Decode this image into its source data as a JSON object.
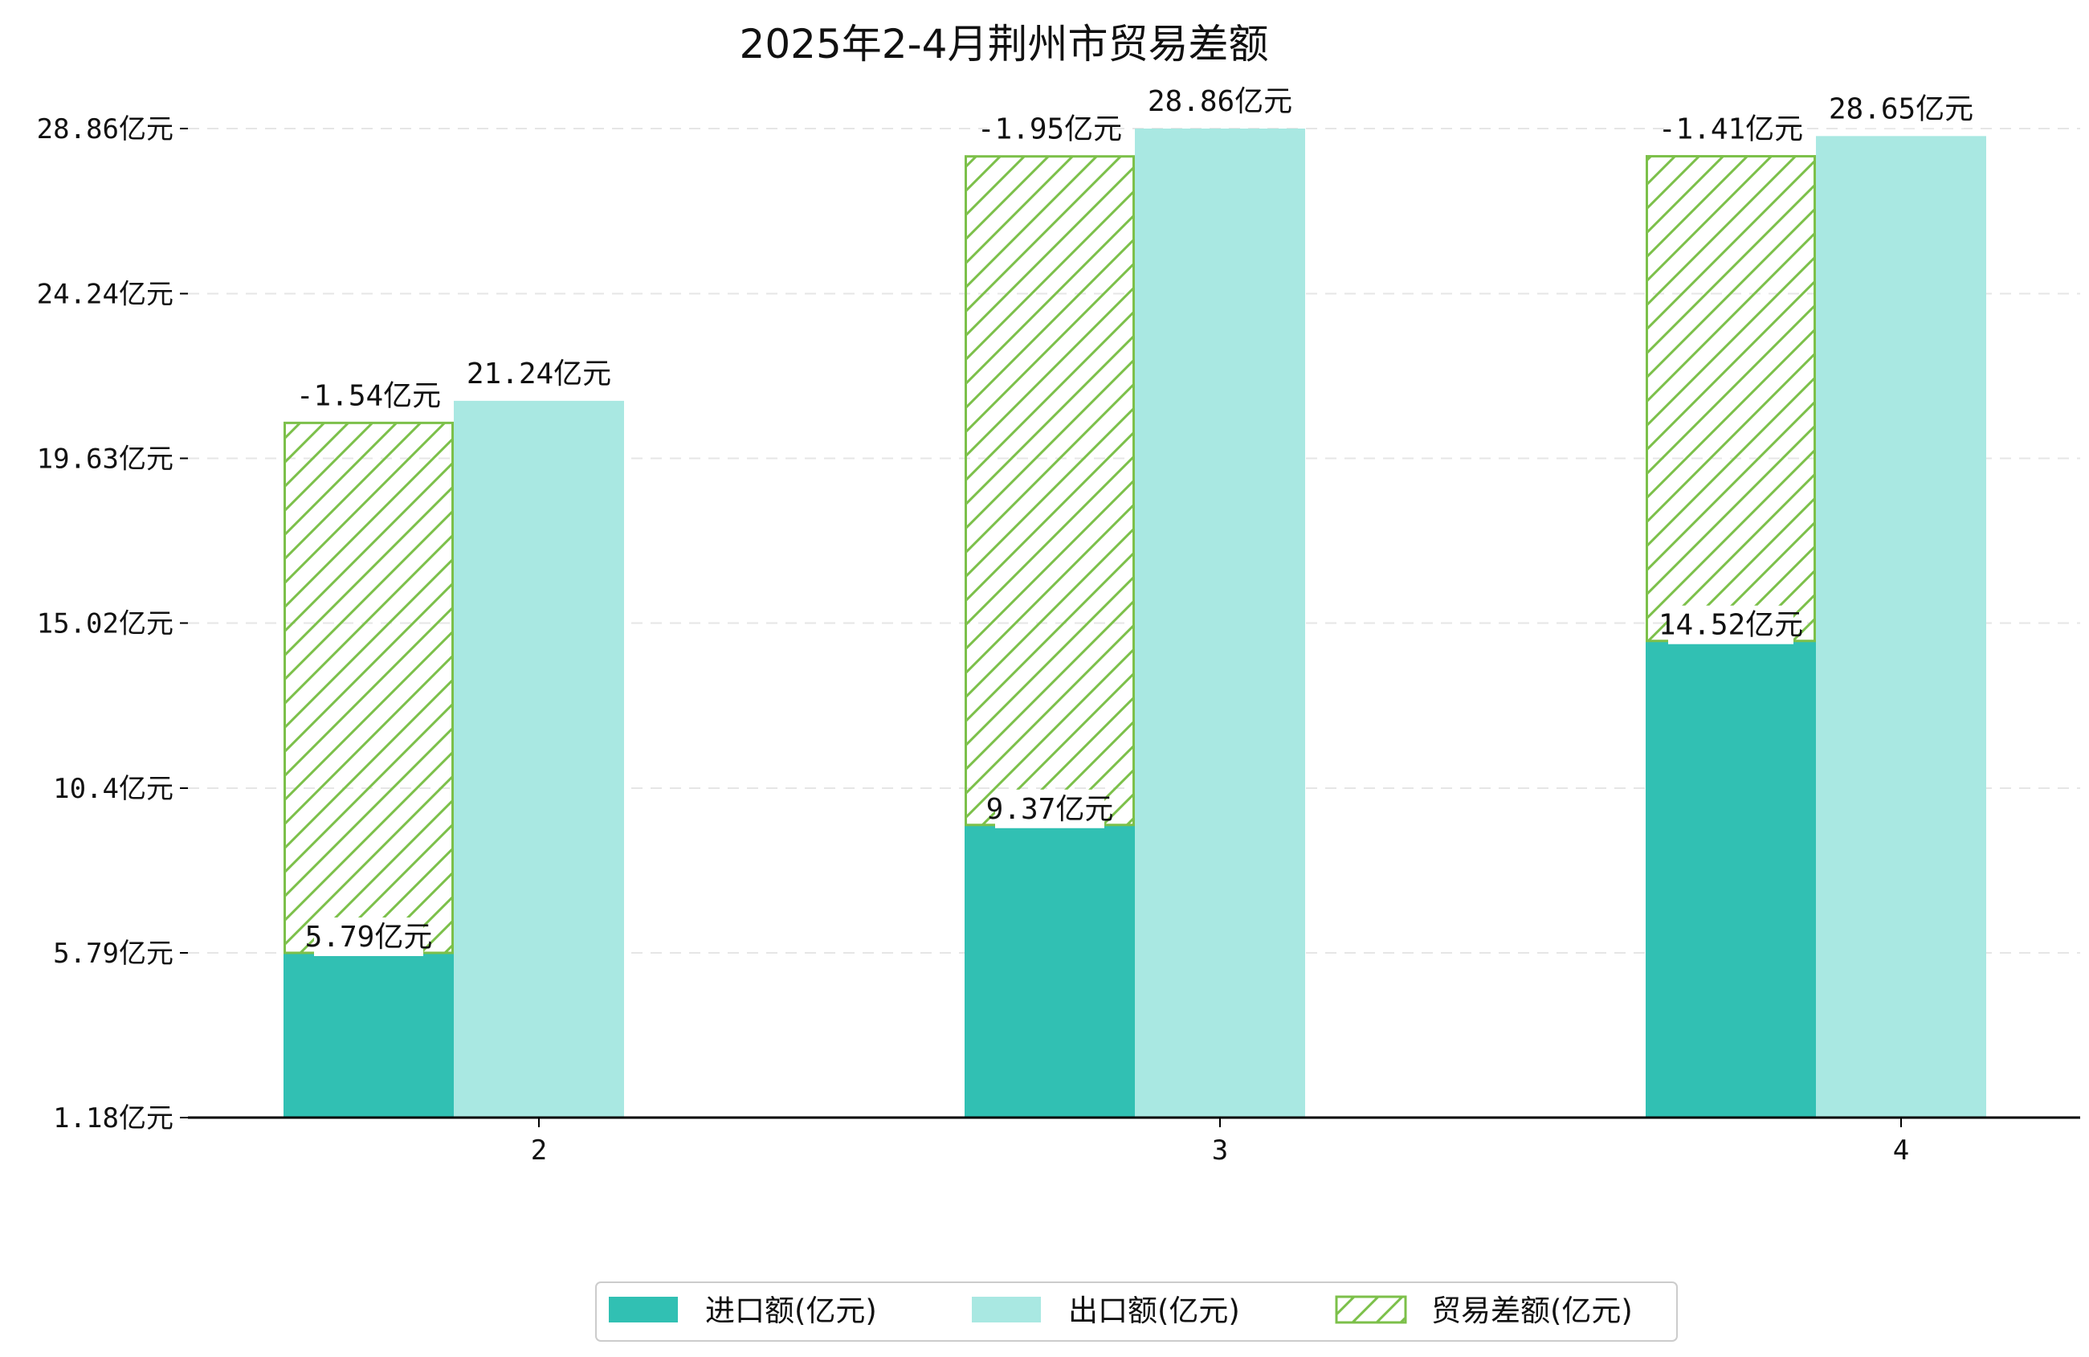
{
  "chart_data": {
    "type": "bar",
    "title": "2025年2-4月荆州市贸易差额",
    "categories": [
      "2",
      "3",
      "4"
    ],
    "series": [
      {
        "name": "进口额(亿元)",
        "values": [
          5.79,
          9.37,
          14.52
        ],
        "labels": [
          "5.79亿元",
          "9.37亿元",
          "14.52亿元"
        ],
        "color": "#31c0b3"
      },
      {
        "name": "出口额(亿元)",
        "values": [
          21.24,
          28.86,
          28.65
        ],
        "labels": [
          "21.24亿元",
          "28.86亿元",
          "28.65亿元"
        ],
        "color": "#a9e8e2"
      },
      {
        "name": "贸易差额(亿元)",
        "values": [
          -1.54,
          -1.95,
          -1.41
        ],
        "labels": [
          "-1.54亿元",
          "-1.95亿元",
          "-1.41亿元"
        ],
        "color": "#7cc04a"
      }
    ],
    "yticks": [
      1.18,
      5.79,
      10.4,
      15.02,
      19.63,
      24.24,
      28.86
    ],
    "ytick_labels": [
      "1.18亿元",
      "5.79亿元",
      "10.4亿元",
      "15.02亿元",
      "19.63亿元",
      "24.24亿元",
      "28.86亿元"
    ],
    "ylim": [
      1.18,
      28.86
    ],
    "grid": true,
    "legend_position": "bottom-center",
    "xlabel": "",
    "ylabel": ""
  }
}
